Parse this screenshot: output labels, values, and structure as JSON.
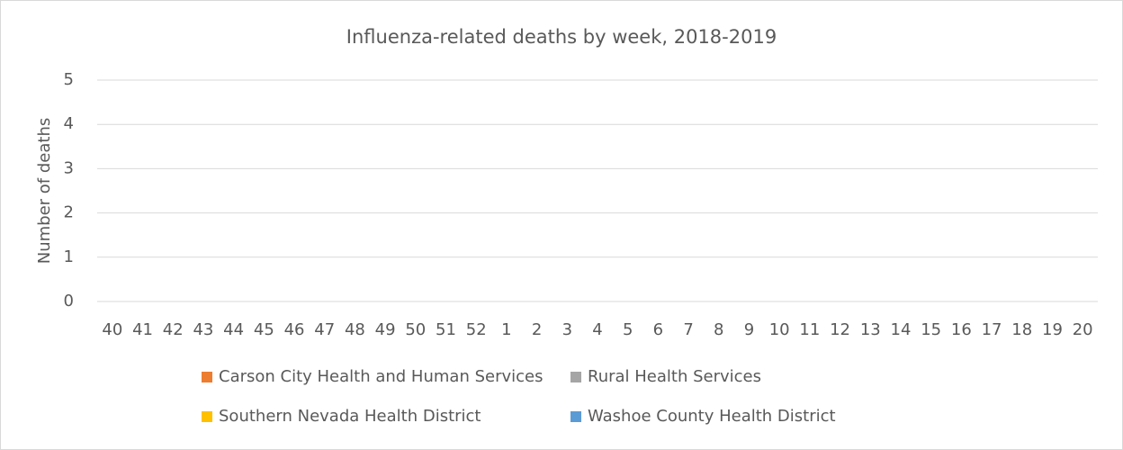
{
  "chart_data": {
    "type": "stacked_bar",
    "title": "Influenza-related deaths by week, 2018-2019",
    "y_label": "Number of deaths",
    "categories": [
      "40",
      "41",
      "42",
      "43",
      "44",
      "45",
      "46",
      "47",
      "48",
      "49",
      "50",
      "51",
      "52",
      "1",
      "2",
      "3",
      "4",
      "5",
      "6",
      "7",
      "8",
      "9",
      "10",
      "11",
      "12",
      "13",
      "14",
      "15",
      "16",
      "17",
      "18",
      "19",
      "20"
    ],
    "series": [
      {
        "name": "Carson City Health and Human Services",
        "color": "#ed7d31",
        "values": [
          0,
          0,
          0,
          0,
          0,
          0,
          0,
          0,
          0,
          null,
          null,
          null,
          null,
          null,
          null,
          null,
          null,
          null,
          null,
          null,
          null,
          null,
          null,
          null,
          null,
          null,
          null,
          null,
          null,
          null,
          null,
          null,
          null
        ]
      },
      {
        "name": "Rural Health Services",
        "color": "#a5a5a5",
        "values": [
          0,
          0,
          0,
          0,
          0,
          0,
          0,
          0,
          0,
          null,
          null,
          null,
          null,
          null,
          null,
          null,
          null,
          null,
          null,
          null,
          null,
          null,
          null,
          null,
          null,
          null,
          null,
          null,
          null,
          null,
          null,
          null,
          null
        ]
      },
      {
        "name": "Southern Nevada Health District",
        "color": "#ffc000",
        "values": [
          0,
          0,
          0,
          0,
          0,
          0,
          0,
          0,
          0,
          null,
          null,
          null,
          null,
          null,
          null,
          null,
          null,
          null,
          null,
          null,
          null,
          null,
          null,
          null,
          null,
          null,
          null,
          null,
          null,
          null,
          null,
          null,
          null
        ]
      },
      {
        "name": "Washoe County Health District",
        "color": "#5b9bd5",
        "values": [
          0,
          0,
          0,
          0,
          0,
          0,
          0,
          0,
          0,
          null,
          null,
          null,
          null,
          null,
          null,
          null,
          null,
          null,
          null,
          null,
          null,
          null,
          null,
          null,
          null,
          null,
          null,
          null,
          null,
          null,
          null,
          null,
          null
        ]
      }
    ],
    "ylim": [
      0,
      5
    ],
    "yticks": [
      0,
      1,
      2,
      3,
      4,
      5
    ],
    "grid": true
  }
}
